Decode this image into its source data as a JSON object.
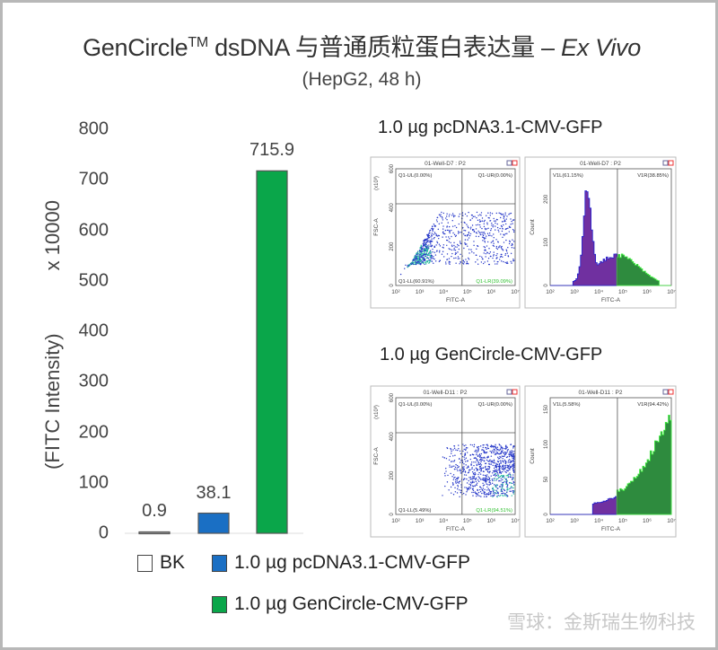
{
  "title": {
    "main": "GenCircle",
    "sup": "TM",
    "rest": " dsDNA 与普通质粒蛋白表达量 – ",
    "italic": "Ex Vivo"
  },
  "subtitle": "(HepG2, 48 h)",
  "chart_data": {
    "type": "bar",
    "categories": [
      "BK",
      "1.0 µg pcDNA3.1-CMV-GFP",
      "1.0 µg GenCircle-CMV-GFP"
    ],
    "values": [
      0.9,
      38.1,
      715.9
    ],
    "value_labels": [
      "0.9",
      "38.1",
      "715.9"
    ],
    "colors": [
      "#ffffff",
      "#1a6fc4",
      "#0aa64a"
    ],
    "ylabel": "(FITC Intensity)",
    "ylabel_multiplier": "x 10000",
    "ylim": [
      0,
      800
    ],
    "yticks": [
      "0",
      "100",
      "200",
      "300",
      "400",
      "500",
      "600",
      "700",
      "800"
    ],
    "legend": {
      "placement": "bottom",
      "entries": [
        "BK",
        "1.0 µg pcDNA3.1-CMV-GFP",
        "1.0 µg GenCircle-CMV-GFP"
      ]
    }
  },
  "flow": [
    {
      "heading": "1.0 µg pcDNA3.1-CMV-GFP",
      "scatter": {
        "title": "01-Well-D7 : P2",
        "UL": "Q1-UL(0.00%)",
        "UR": "Q1-UR(0.00%)",
        "LL": "Q1-LL(60.91%)",
        "LR": "Q1-LR(39.09%)",
        "ylabel": "FSC-A",
        "yunit": "(x10³)",
        "yticks": [
          "0",
          "200",
          "400",
          "600"
        ],
        "xlabel": "FITC-A"
      },
      "hist": {
        "title": "01-Well-D7 : P2",
        "L": "V1L(61.15%)",
        "R": "V1R(38.85%)",
        "ylabel": "Count",
        "yticks": [
          "0",
          "100",
          "200"
        ],
        "xlabel": "FITC-A"
      }
    },
    {
      "heading": "1.0 µg GenCircle-CMV-GFP",
      "scatter": {
        "title": "01-Well-D11 : P2",
        "UL": "Q1-UL(0.00%)",
        "UR": "Q1-UR(0.00%)",
        "LL": "Q1-LL(5.49%)",
        "LR": "Q1-LR(94.51%)",
        "ylabel": "FSC-A",
        "yunit": "(x10³)",
        "yticks": [
          "0",
          "200",
          "400",
          "600"
        ],
        "xlabel": "FITC-A"
      },
      "hist": {
        "title": "01-Well-D11 : P2",
        "L": "V1L(5.58%)",
        "R": "V1R(94.42%)",
        "ylabel": "Count",
        "yticks": [
          "0",
          "50",
          "100",
          "150"
        ],
        "xlabel": "FITC-A"
      }
    }
  ],
  "xticks_flow": [
    "10²",
    "10³",
    "10⁴",
    "10⁵",
    "10⁶",
    "10⁷"
  ],
  "watermark": "雪球：金斯瑞生物科技"
}
